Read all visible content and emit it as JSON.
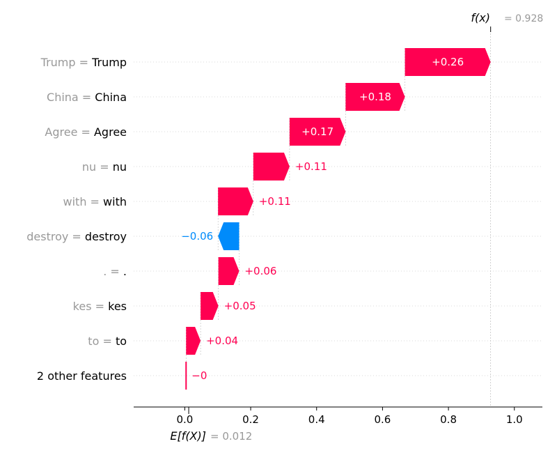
{
  "chart_data": {
    "type": "waterfall",
    "base_value_label": "E[f(X)]",
    "base_value_text": "= 0.012",
    "base_value": 0.012,
    "output_label": "f(x)",
    "output_value_text": "= 0.928",
    "output_value": 0.928,
    "xlim": [
      -0.155,
      1.085
    ],
    "xticks": [
      {
        "value": 0.0,
        "label": "0.0"
      },
      {
        "value": 0.2,
        "label": "0.2"
      },
      {
        "value": 0.4,
        "label": "0.4"
      },
      {
        "value": 0.6,
        "label": "0.6"
      },
      {
        "value": 0.8,
        "label": "0.8"
      },
      {
        "value": 1.0,
        "label": "1.0"
      }
    ],
    "features": [
      {
        "name": "Trump ",
        "value_text": "Trump",
        "value": 0.26,
        "label": "+0.26"
      },
      {
        "name": "China ",
        "value_text": "China",
        "value": 0.18,
        "label": "+0.18"
      },
      {
        "name": "Agree ",
        "value_text": "Agree",
        "value": 0.17,
        "label": "+0.17"
      },
      {
        "name": "nu",
        "value_text": "nu",
        "value": 0.11,
        "label": "+0.11"
      },
      {
        "name": "with ",
        "value_text": "with",
        "value": 0.107,
        "label": "+0.11"
      },
      {
        "name": "destroy ",
        "value_text": "destroy",
        "value": -0.064,
        "label": "−0.06"
      },
      {
        "name": ".",
        "value_text": ".",
        "value": 0.063,
        "label": "+0.06"
      },
      {
        "name": "kes",
        "value_text": "kes",
        "value": 0.054,
        "label": "+0.05"
      },
      {
        "name": "to ",
        "value_text": "to",
        "value": 0.044,
        "label": "+0.04"
      },
      {
        "name": "",
        "value_text": "2 other features",
        "value": 0.0,
        "label": "−0"
      }
    ],
    "colors": {
      "positive": "#ff0051",
      "negative": "#008bfb",
      "feature_name": "#999999",
      "feature_value": "#000000",
      "grid": "#cccccc"
    }
  }
}
